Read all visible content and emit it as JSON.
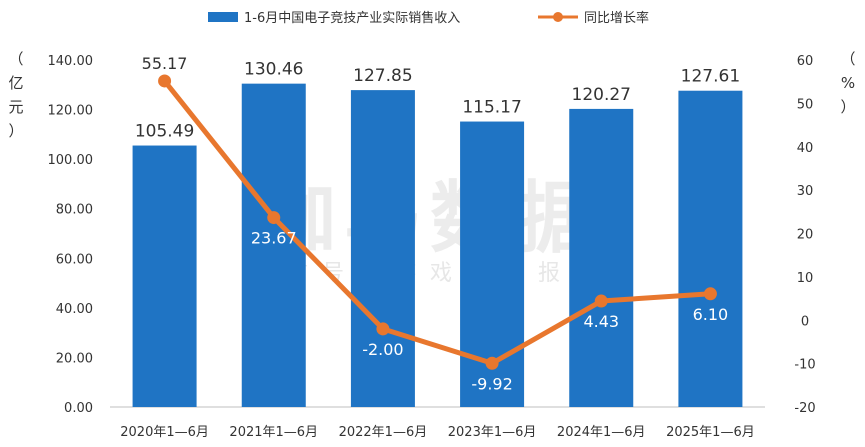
{
  "chart_data": {
    "type": "bar",
    "categories": [
      "2020年1—6月",
      "2021年1—6月",
      "2022年1—6月",
      "2023年1—6月",
      "2024年1—6月",
      "2025年1—6月"
    ],
    "series": [
      {
        "name": "1-6月中国电子竞技产业实际销售收入",
        "type": "bar",
        "axis": "left",
        "color": "#1f74c4",
        "values": [
          105.49,
          130.46,
          127.85,
          115.17,
          120.27,
          127.61
        ],
        "labels": [
          "105.49",
          "130.46",
          "127.85",
          "115.17",
          "120.27",
          "127.61"
        ]
      },
      {
        "name": "同比增长率",
        "type": "line",
        "axis": "right",
        "color": "#e8772e",
        "values": [
          55.17,
          23.67,
          -2.0,
          -9.92,
          4.43,
          6.1
        ],
        "labels": [
          "55.17",
          "23.67",
          "-2.00",
          "-9.92",
          "4.43",
          "6.10"
        ]
      }
    ],
    "ylabel_left": "（亿元）",
    "ylabel_right": "（%）",
    "ylim_left": [
      0,
      140
    ],
    "yticks_left": [
      "0.00",
      "20.00",
      "40.00",
      "60.00",
      "80.00",
      "100.00",
      "120.00",
      "140.00"
    ],
    "ylim_right": [
      -20,
      60
    ],
    "yticks_right": [
      "-20",
      "-10",
      "0",
      "10",
      "20",
      "30",
      "40",
      "50",
      "60"
    ],
    "legend_position": "top-center",
    "grid": false
  },
  "watermark": {
    "main": "伽马数据",
    "sub": "微信号：游戏产业报告"
  }
}
